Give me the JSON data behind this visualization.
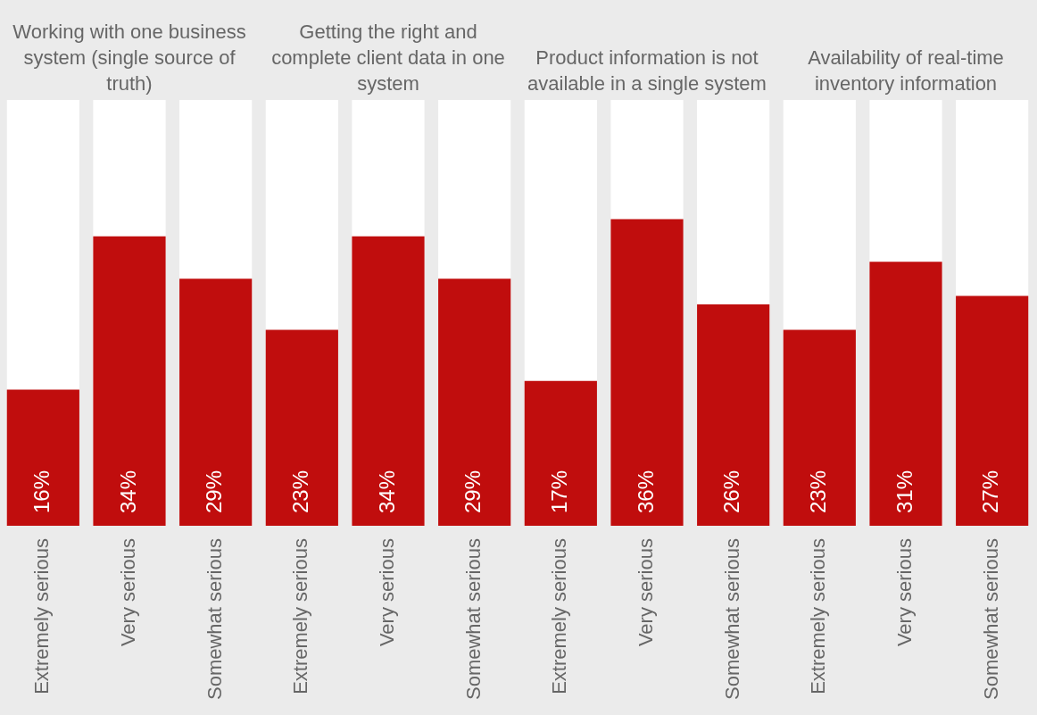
{
  "chart_data": [
    {
      "type": "bar",
      "title": "Working with one business system (single source of truth)",
      "categories": [
        "Extremely serious",
        "Very serious",
        "Somewhat serious"
      ],
      "values": [
        16,
        34,
        29
      ],
      "value_labels": [
        "16%",
        "34%",
        "29%"
      ],
      "color": "#c00d0d",
      "ylim": [
        0,
        50
      ],
      "tick_labels": "x",
      "grid": false,
      "legend": false
    },
    {
      "type": "bar",
      "title": "Getting the right and complete client data in one system",
      "categories": [
        "Extremely serious",
        "Very serious",
        "Somewhat serious"
      ],
      "values": [
        23,
        34,
        29
      ],
      "value_labels": [
        "23%",
        "34%",
        "29%"
      ],
      "color": "#c00d0d",
      "ylim": [
        0,
        50
      ],
      "tick_labels": "x",
      "grid": false,
      "legend": false
    },
    {
      "type": "bar",
      "title": "Product information is not available in a single system",
      "categories": [
        "Extremely serious",
        "Very serious",
        "Somewhat serious"
      ],
      "values": [
        17,
        36,
        26
      ],
      "value_labels": [
        "17%",
        "36%",
        "26%"
      ],
      "color": "#c00d0d",
      "ylim": [
        0,
        50
      ],
      "tick_labels": "x",
      "grid": false,
      "legend": false
    },
    {
      "type": "bar",
      "title": "Availability of real-time inventory information",
      "categories": [
        "Extremely serious",
        "Very serious",
        "Somewhat serious"
      ],
      "values": [
        23,
        31,
        27
      ],
      "value_labels": [
        "23%",
        "31%",
        "27%"
      ],
      "color": "#c00d0d",
      "ylim": [
        0,
        50
      ],
      "tick_labels": "x",
      "grid": false,
      "legend": false
    }
  ]
}
